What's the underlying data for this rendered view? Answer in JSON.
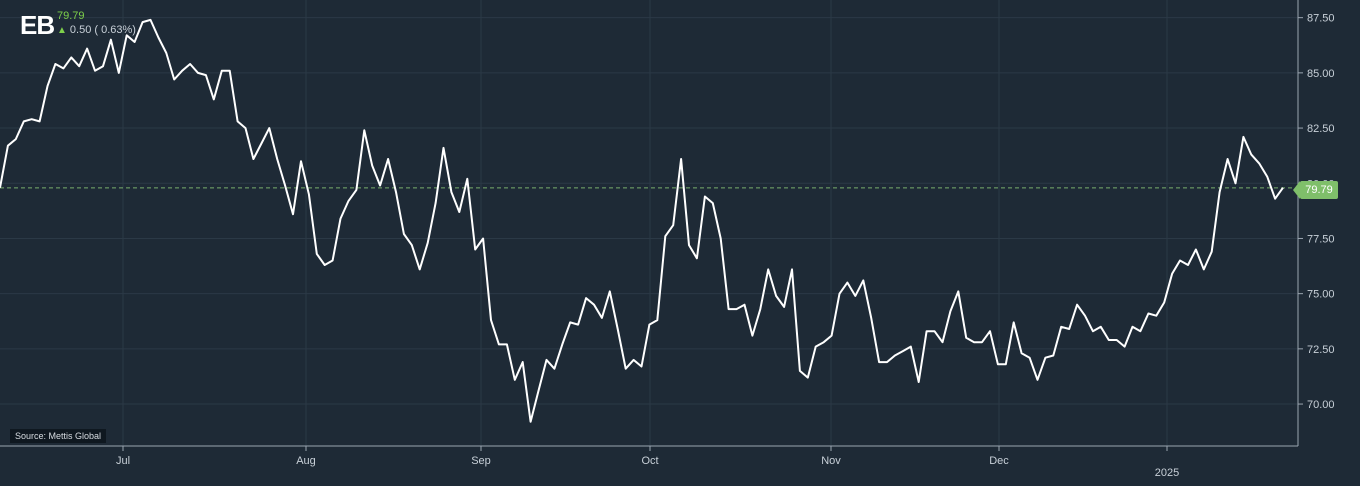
{
  "header": {
    "ticker": "EB",
    "last_price": "79.79",
    "change_text": "0.50 ( 0.63%)"
  },
  "source_label": "Source: Mettis Global",
  "price_tag": "79.79",
  "colors": {
    "background": "#1e2a36",
    "line": "#ffffff",
    "grid": "#2b3946",
    "accent_up": "#7ed04b",
    "price_tag": "#7fbf6a"
  },
  "chart_data": {
    "type": "line",
    "y_ticks": [
      "87.50",
      "85.00",
      "82.50",
      "80.00",
      "77.50",
      "75.00",
      "72.50",
      "70.00"
    ],
    "ylim": [
      68.1,
      88.3
    ],
    "x_ticks": [
      "Jul",
      "Aug",
      "Sep",
      "Oct",
      "Nov",
      "Dec",
      "2025"
    ],
    "reference_value": 79.79,
    "series": [
      {
        "values": [
          79.8,
          81.7,
          82.0,
          82.8,
          82.9,
          82.8,
          84.4,
          85.4,
          85.2,
          85.7,
          85.3,
          86.1,
          85.1,
          85.3,
          86.5,
          85.0,
          86.7,
          86.4,
          87.3,
          87.4,
          86.6,
          85.9,
          84.7,
          85.1,
          85.4,
          85.0,
          84.9,
          83.8,
          85.1,
          85.1,
          82.8,
          82.5,
          81.1,
          81.8,
          82.5,
          81.1,
          79.9,
          78.6,
          81.0,
          79.5,
          76.8,
          76.3,
          76.5,
          78.4,
          79.2,
          79.7,
          82.4,
          80.8,
          79.9,
          81.1,
          79.6,
          77.7,
          77.2,
          76.1,
          77.3,
          79.1,
          81.6,
          79.6,
          78.7,
          80.2,
          77.0,
          77.5,
          73.8,
          72.7,
          72.7,
          71.1,
          71.9,
          69.2,
          70.6,
          72.0,
          71.6,
          72.7,
          73.7,
          73.6,
          74.8,
          74.5,
          73.9,
          75.1,
          73.4,
          71.6,
          72.0,
          71.7,
          73.6,
          73.8,
          77.6,
          78.1,
          81.1,
          77.2,
          76.6,
          79.4,
          79.1,
          77.5,
          74.3,
          74.3,
          74.5,
          73.1,
          74.3,
          76.1,
          74.9,
          74.4,
          76.1,
          71.5,
          71.2,
          72.6,
          72.8,
          73.1,
          75.0,
          75.5,
          74.9,
          75.6,
          73.9,
          71.9,
          71.9,
          72.2,
          72.4,
          72.6,
          71.0,
          73.3,
          73.3,
          72.8,
          74.2,
          75.1,
          73.0,
          72.8,
          72.8,
          73.3,
          71.8,
          71.8,
          73.7,
          72.3,
          72.1,
          71.1,
          72.1,
          72.2,
          73.5,
          73.4,
          74.5,
          74.0,
          73.3,
          73.5,
          72.9,
          72.9,
          72.6,
          73.5,
          73.3,
          74.1,
          74.0,
          74.6,
          75.9,
          76.5,
          76.3,
          77.0,
          76.1,
          76.9,
          79.6,
          81.1,
          80.0,
          82.1,
          81.3,
          80.9,
          80.3,
          79.3,
          79.8
        ]
      }
    ]
  }
}
